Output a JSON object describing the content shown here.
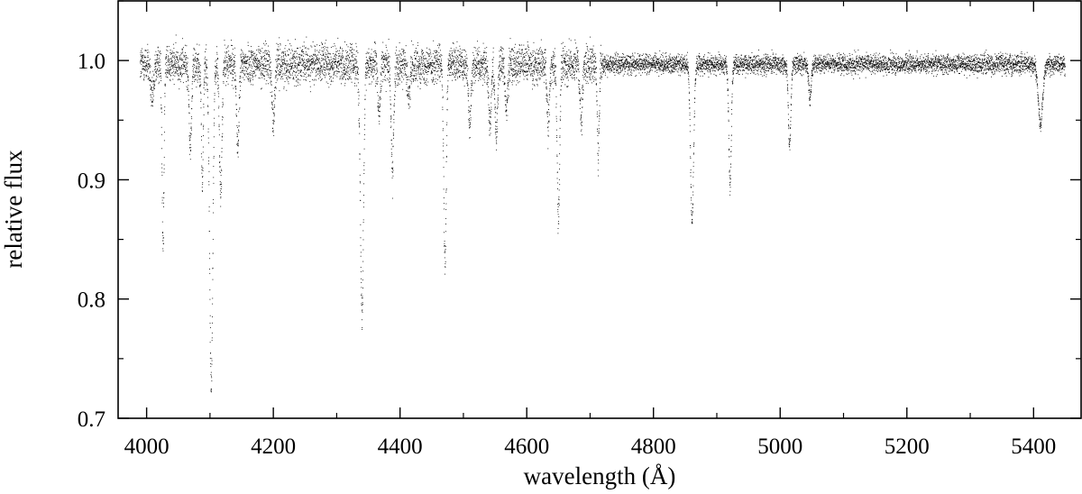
{
  "chart_data": {
    "type": "scatter",
    "title": "",
    "xlabel": "wavelength (Å)",
    "ylabel": "relative flux",
    "xlim": [
      3955,
      5475
    ],
    "ylim": [
      0.7,
      1.05
    ],
    "x_ticks": [
      4000,
      4200,
      4400,
      4600,
      4800,
      5000,
      5200,
      5400
    ],
    "y_ticks": [
      0.7,
      0.8,
      0.9,
      1.0
    ],
    "x_tick_labels": [
      "4000",
      "4200",
      "4400",
      "4600",
      "4800",
      "5000",
      "5200",
      "5400"
    ],
    "y_tick_labels": [
      "0.7",
      "0.8",
      "0.9",
      "1.0"
    ],
    "grid": false,
    "legend": "none",
    "marker_color": "#000000",
    "spectrum": {
      "x_range": [
        3990,
        5450
      ],
      "continuum": 0.997,
      "absorption_lines": [
        {
          "x": 4009,
          "depth": 0.03,
          "width": 2.5
        },
        {
          "x": 4026,
          "depth": 0.15,
          "width": 1.5
        },
        {
          "x": 4069,
          "depth": 0.07,
          "width": 2.0
        },
        {
          "x": 4088,
          "depth": 0.1,
          "width": 1.5
        },
        {
          "x": 4102,
          "depth": 0.27,
          "width": 2.5
        },
        {
          "x": 4117,
          "depth": 0.11,
          "width": 2.0
        },
        {
          "x": 4144,
          "depth": 0.07,
          "width": 2.0
        },
        {
          "x": 4200,
          "depth": 0.05,
          "width": 2.0
        },
        {
          "x": 4340,
          "depth": 0.21,
          "width": 2.5
        },
        {
          "x": 4367,
          "depth": 0.04,
          "width": 2.0
        },
        {
          "x": 4388,
          "depth": 0.09,
          "width": 2.0
        },
        {
          "x": 4414,
          "depth": 0.03,
          "width": 2.0
        },
        {
          "x": 4471,
          "depth": 0.17,
          "width": 2.0
        },
        {
          "x": 4510,
          "depth": 0.05,
          "width": 2.0
        },
        {
          "x": 4542,
          "depth": 0.05,
          "width": 2.0
        },
        {
          "x": 4552,
          "depth": 0.06,
          "width": 2.0
        },
        {
          "x": 4568,
          "depth": 0.04,
          "width": 2.0
        },
        {
          "x": 4634,
          "depth": 0.05,
          "width": 2.0
        },
        {
          "x": 4650,
          "depth": 0.13,
          "width": 2.0
        },
        {
          "x": 4686,
          "depth": 0.05,
          "width": 2.0
        },
        {
          "x": 4713,
          "depth": 0.08,
          "width": 1.5
        },
        {
          "x": 4861,
          "depth": 0.13,
          "width": 2.5
        },
        {
          "x": 4921,
          "depth": 0.1,
          "width": 2.0
        },
        {
          "x": 5015,
          "depth": 0.07,
          "width": 2.0
        },
        {
          "x": 5047,
          "depth": 0.03,
          "width": 2.0
        },
        {
          "x": 5411,
          "depth": 0.05,
          "width": 3.5
        }
      ]
    }
  }
}
